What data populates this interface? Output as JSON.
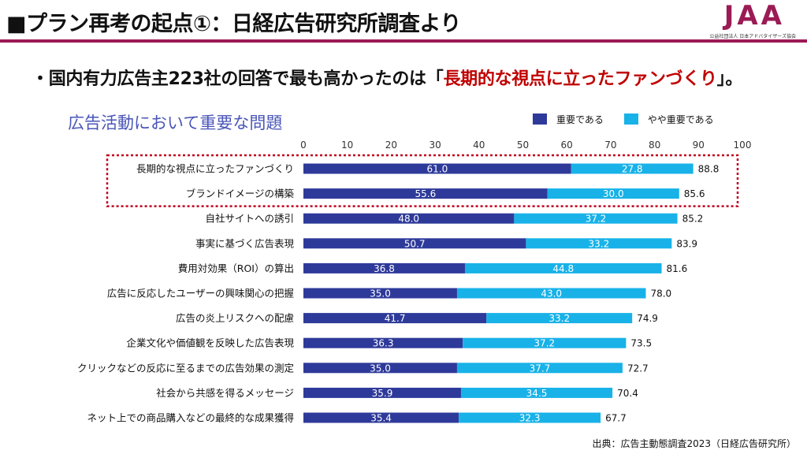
{
  "header": {
    "title": "■プラン再考の起点①：日経広告研究所調査より",
    "logo_text": "JAA",
    "logo_subtitle": "公益社団法人 日本アドバタイザーズ協会"
  },
  "bullet": {
    "prefix": "・国内有力広告主223社の回答で最も高かったのは「",
    "highlight": "長期的な視点に立ったファンづくり",
    "suffix": "」。"
  },
  "colors": {
    "accent": "#9b1b55",
    "highlight": "#c00000",
    "series1": "#2e3a9a",
    "series2": "#18b2e8",
    "frame": "#c0001d"
  },
  "chart_data": {
    "type": "bar",
    "orientation": "horizontal",
    "stacked": true,
    "title": "広告活動において重要な問題",
    "xlim": [
      0,
      100
    ],
    "xticks": [
      "0",
      "10",
      "20",
      "30",
      "40",
      "50",
      "60",
      "70",
      "80",
      "90",
      "100"
    ],
    "categories": [
      "長期的な視点に立ったファンづくり",
      "ブランドイメージの構築",
      "自社サイトへの誘引",
      "事実に基づく広告表現",
      "費用対効果（ROI）の算出",
      "広告に反応したユーザーの興味関心の把握",
      "広告の炎上リスクへの配慮",
      "企業文化や価値観を反映した広告表現",
      "クリックなどの反応に至るまでの広告効果の測定",
      "社会から共感を得るメッセージ",
      "ネット上での商品購入などの最終的な成果獲得"
    ],
    "series": [
      {
        "name": "重要である",
        "values": [
          61.0,
          55.6,
          48.0,
          50.7,
          36.8,
          35.0,
          41.7,
          36.3,
          35.0,
          35.9,
          35.4
        ],
        "labels": [
          "61.0",
          "55.6",
          "48.0",
          "50.7",
          "36.8",
          "35.0",
          "41.7",
          "36.3",
          "35.0",
          "35.9",
          "35.4"
        ]
      },
      {
        "name": "やや重要である",
        "values": [
          27.8,
          30.0,
          37.2,
          33.2,
          44.8,
          43.0,
          33.2,
          37.2,
          37.7,
          34.5,
          32.3
        ],
        "labels": [
          "27.8",
          "30.0",
          "37.2",
          "33.2",
          "44.8",
          "43.0",
          "33.2",
          "37.2",
          "37.7",
          "34.5",
          "32.3"
        ]
      }
    ],
    "totals": [
      "88.8",
      "85.6",
      "85.2",
      "83.9",
      "81.6",
      "78.0",
      "74.9",
      "73.5",
      "72.7",
      "70.4",
      "67.7"
    ],
    "highlighted_categories": [
      0,
      1
    ],
    "legend_position": "top-right"
  },
  "source": "出典：広告主動態調査2023（日経広告研究所）"
}
